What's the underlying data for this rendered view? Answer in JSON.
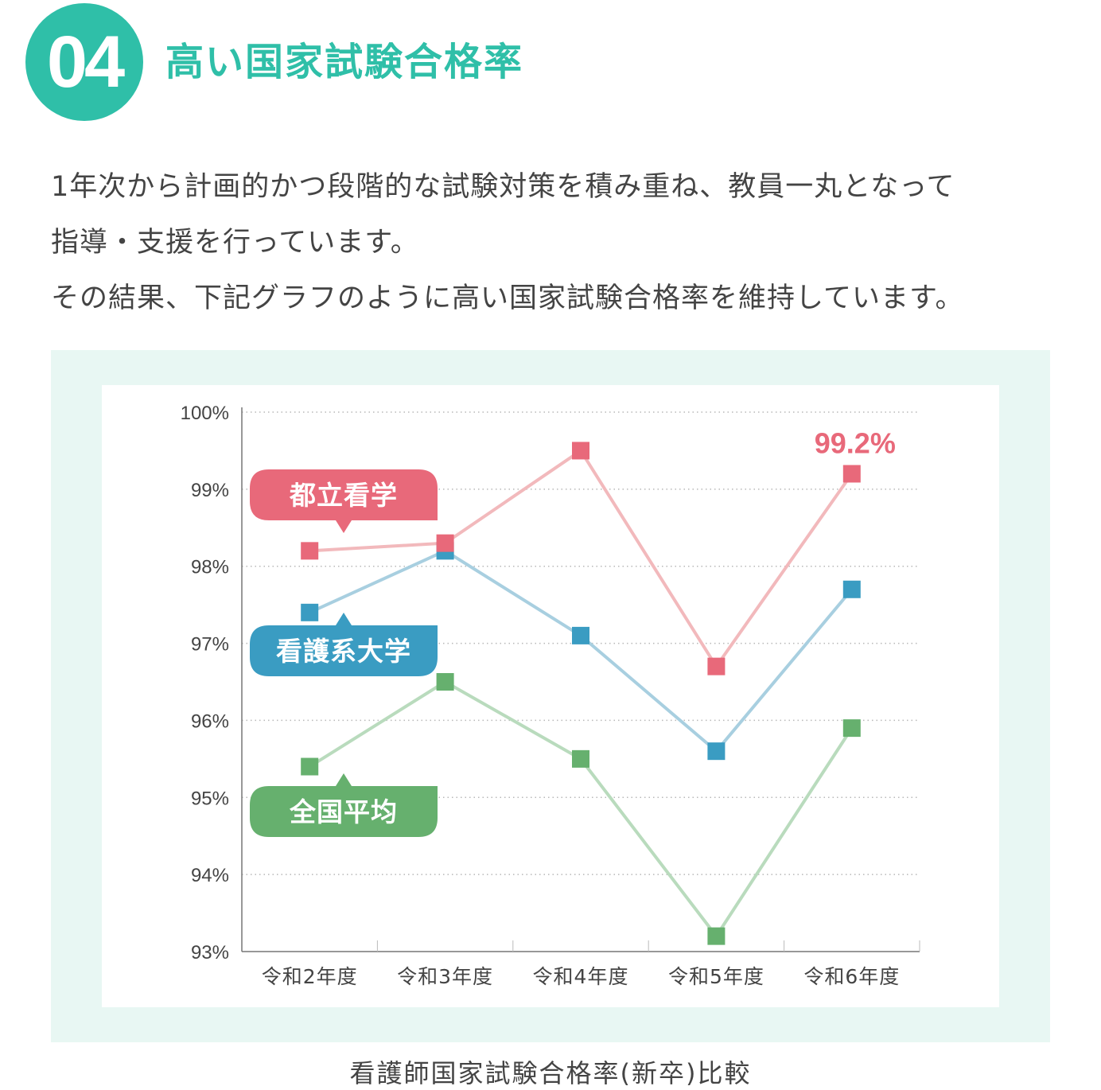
{
  "header": {
    "number": "04",
    "title": "高い国家試験合格率"
  },
  "intro": {
    "lines": [
      "1年次から計画的かつ段階的な試験対策を積み重ね、教員一丸となって",
      "指導・支援を行っています。",
      "その結果、下記グラフのように高い国家試験合格率を維持しています。"
    ]
  },
  "chart_data": {
    "type": "line",
    "categories": [
      "令和2年度",
      "令和3年度",
      "令和4年度",
      "令和5年度",
      "令和6年度"
    ],
    "y_ticks": [
      "100%",
      "99%",
      "98%",
      "97%",
      "96%",
      "95%",
      "94%",
      "93%"
    ],
    "ylim": [
      93,
      100
    ],
    "grid": true,
    "series": [
      {
        "name": "都立看学",
        "values": [
          98.2,
          98.3,
          99.5,
          96.7,
          99.2
        ],
        "line_color": "#f2b9bc",
        "marker_color": "#e8697a"
      },
      {
        "name": "看護系大学",
        "values": [
          97.4,
          98.2,
          97.1,
          95.6,
          97.7
        ],
        "line_color": "#a8cfe0",
        "marker_color": "#3a9cc2"
      },
      {
        "name": "全国平均",
        "values": [
          95.4,
          96.5,
          95.5,
          93.2,
          95.9
        ],
        "line_color": "#b9dbbd",
        "marker_color": "#66b06e"
      }
    ],
    "annotation": {
      "text": "99.2%",
      "color": "#e8697a"
    },
    "caption": "看護師国家試験合格率(新卒)比較"
  },
  "colors": {
    "accent": "#2fbfa8",
    "panel_bg": "#e8f7f3"
  }
}
